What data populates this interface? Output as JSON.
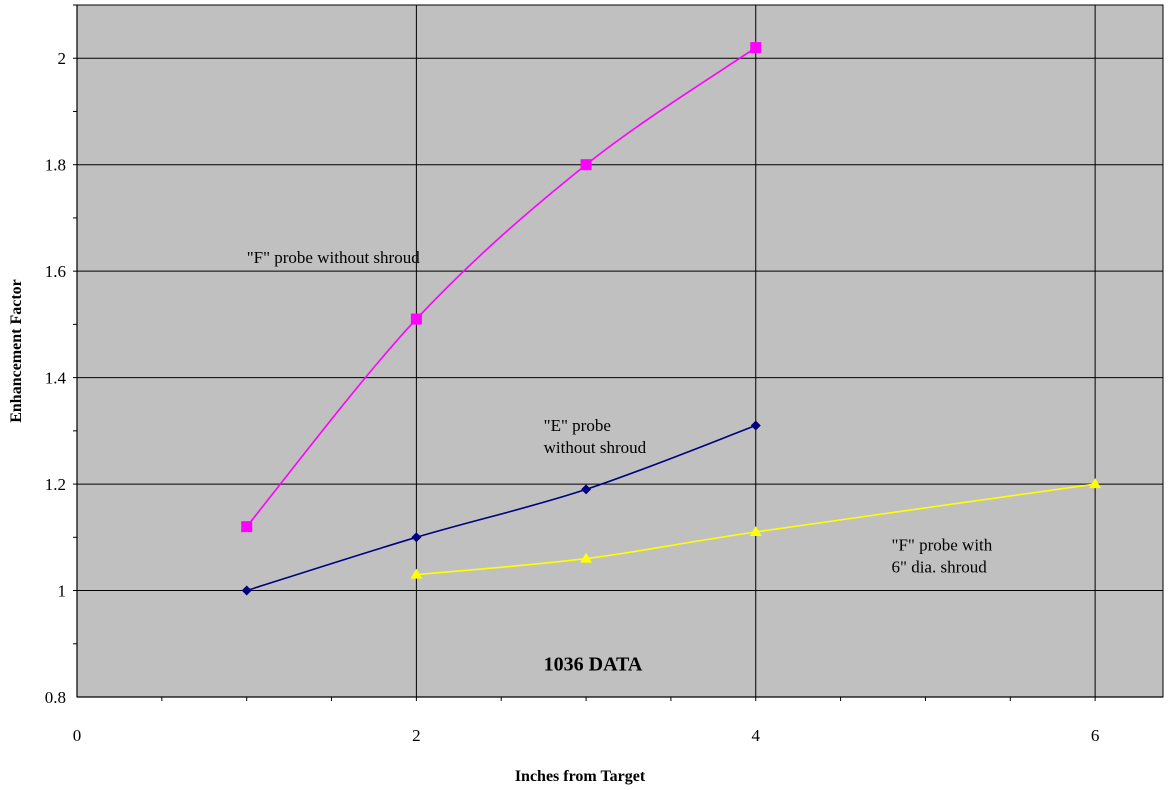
{
  "chart_data": {
    "type": "line",
    "title": "",
    "xlabel": "Inches from Target",
    "ylabel": "Enhancement Factor",
    "xlim": [
      0,
      6.4
    ],
    "ylim": [
      0.8,
      2.1
    ],
    "x_ticks": [
      0,
      2,
      4,
      6
    ],
    "x_tick_labels": [
      "0",
      "2",
      "4",
      "6"
    ],
    "y_ticks": [
      0.8,
      1,
      1.2,
      1.4,
      1.6,
      1.8,
      2
    ],
    "y_tick_labels": [
      "0.8",
      "1",
      "1.2",
      "1.4",
      "1.6",
      "1.8",
      "2"
    ],
    "grid": true,
    "plot_background": "#c0c0c0",
    "series": [
      {
        "color": "#ff00ff",
        "marker": "square",
        "x": [
          1,
          2,
          3,
          4
        ],
        "y": [
          1.12,
          1.51,
          1.8,
          2.02
        ]
      },
      {
        "color": "#000080",
        "marker": "diamond",
        "x": [
          1,
          2,
          3,
          4
        ],
        "y": [
          1.0,
          1.1,
          1.19,
          1.31
        ]
      },
      {
        "color": "#ffff00",
        "marker": "triangle",
        "x": [
          2,
          3,
          4,
          6
        ],
        "y": [
          1.03,
          1.06,
          1.11,
          1.2
        ]
      }
    ],
    "annotations": [
      {
        "lines": [
          "\"F\" probe without shroud"
        ],
        "x": 1.0,
        "y": 1.615,
        "style": "normal"
      },
      {
        "lines": [
          "\"E\"  probe",
          "without shroud"
        ],
        "x": 2.75,
        "y": 1.3,
        "style": "normal"
      },
      {
        "lines": [
          "\"F\" probe with",
          "6\" dia. shroud"
        ],
        "x": 4.8,
        "y": 1.075,
        "style": "normal"
      },
      {
        "lines": [
          "1036 DATA"
        ],
        "x": 2.75,
        "y": 0.85,
        "style": "bold"
      }
    ]
  }
}
